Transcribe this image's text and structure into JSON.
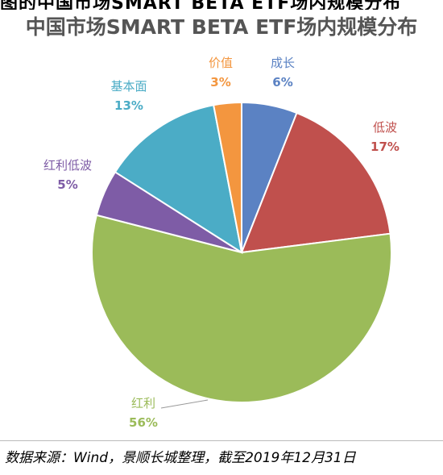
{
  "header": {
    "partial_text": "图的中国市场SMART BETA ETF场内规模分布",
    "title": "中国市场SMART BETA ETF场内规模分布"
  },
  "footer": {
    "source": "数据来源：Wind，景顺长城整理，截至2019年12月31日"
  },
  "colors": {
    "成长": "#5b82c3",
    "低波": "#c0504d",
    "红利": "#9bbb59",
    "红利低波": "#7e5ca6",
    "基本面": "#4bacc6",
    "价值": "#f3963f"
  },
  "chart_data": {
    "type": "pie",
    "title": "中国市场SMART BETA ETF场内规模分布",
    "unit": "%",
    "slices": [
      {
        "label": "成长",
        "value": 6,
        "display": "6%"
      },
      {
        "label": "低波",
        "value": 17,
        "display": "17%"
      },
      {
        "label": "红利",
        "value": 56,
        "display": "56%"
      },
      {
        "label": "红利低波",
        "value": 5,
        "display": "5%"
      },
      {
        "label": "基本面",
        "value": 13,
        "display": "13%"
      },
      {
        "label": "价值",
        "value": 3,
        "display": "3%"
      }
    ]
  }
}
